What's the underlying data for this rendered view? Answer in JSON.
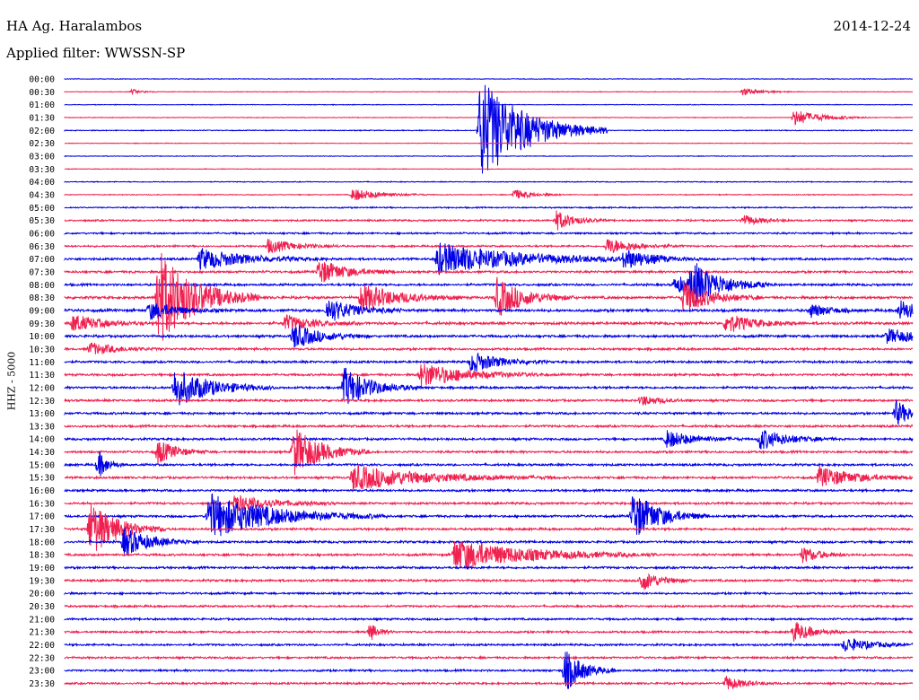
{
  "header": {
    "station": "HA Ag. Haralambos",
    "date": "2014-12-24",
    "filter": "Applied filter: WWSSN-SP"
  },
  "chart_data": {
    "type": "line",
    "ylabel": "HHZ - 5000",
    "row_labels": [
      "00:00",
      "00:30",
      "01:00",
      "01:30",
      "02:00",
      "02:30",
      "03:00",
      "03:30",
      "04:00",
      "04:30",
      "05:00",
      "05:30",
      "06:00",
      "06:30",
      "07:00",
      "07:30",
      "08:00",
      "08:30",
      "09:00",
      "09:30",
      "10:00",
      "10:30",
      "11:00",
      "11:30",
      "12:00",
      "12:30",
      "13:00",
      "13:30",
      "14:00",
      "14:30",
      "15:00",
      "15:30",
      "16:00",
      "16:30",
      "17:00",
      "17:30",
      "18:00",
      "18:30",
      "19:00",
      "19:30",
      "20:00",
      "20:30",
      "21:00",
      "21:30",
      "22:00",
      "22:30",
      "23:00",
      "23:30"
    ],
    "colors": {
      "even_rows": "#0000e6",
      "odd_rows": "#f0204f"
    },
    "noise_level": [
      0.3,
      0.3,
      0.3,
      0.3,
      0.4,
      0.3,
      0.3,
      0.3,
      0.4,
      0.4,
      0.6,
      0.8,
      0.8,
      0.8,
      1.0,
      1.0,
      1.0,
      1.2,
      1.2,
      1.2,
      1.1,
      1.0,
      1.0,
      1.0,
      1.0,
      1.0,
      1.0,
      1.0,
      1.0,
      1.0,
      1.0,
      1.0,
      1.0,
      1.0,
      1.0,
      1.0,
      1.0,
      1.0,
      1.0,
      1.0,
      0.9,
      0.9,
      0.9,
      0.9,
      0.9,
      0.9,
      0.9,
      0.9
    ],
    "events": [
      {
        "row": 1,
        "t": 0.08,
        "amp": 3,
        "dur": 0.01
      },
      {
        "row": 1,
        "t": 0.8,
        "amp": 4,
        "dur": 0.02
      },
      {
        "row": 3,
        "t": 0.86,
        "amp": 9,
        "dur": 0.03
      },
      {
        "row": 4,
        "t": 0.49,
        "amp": 60,
        "dur": 0.05
      },
      {
        "row": 9,
        "t": 0.34,
        "amp": 7,
        "dur": 0.03
      },
      {
        "row": 9,
        "t": 0.53,
        "amp": 6,
        "dur": 0.02
      },
      {
        "row": 11,
        "t": 0.58,
        "amp": 11,
        "dur": 0.02
      },
      {
        "row": 11,
        "t": 0.8,
        "amp": 6,
        "dur": 0.02
      },
      {
        "row": 13,
        "t": 0.24,
        "amp": 8,
        "dur": 0.03
      },
      {
        "row": 13,
        "t": 0.64,
        "amp": 9,
        "dur": 0.03
      },
      {
        "row": 14,
        "t": 0.16,
        "amp": 12,
        "dur": 0.05
      },
      {
        "row": 14,
        "t": 0.44,
        "amp": 18,
        "dur": 0.09
      },
      {
        "row": 14,
        "t": 0.66,
        "amp": 10,
        "dur": 0.03
      },
      {
        "row": 15,
        "t": 0.3,
        "amp": 14,
        "dur": 0.03
      },
      {
        "row": 16,
        "t": 0.72,
        "amp": 9,
        "dur": 0.04
      },
      {
        "row": 16,
        "t": 0.74,
        "amp": 22,
        "dur": 0.03
      },
      {
        "row": 17,
        "t": 0.11,
        "amp": 55,
        "dur": 0.04
      },
      {
        "row": 17,
        "t": 0.35,
        "amp": 16,
        "dur": 0.04
      },
      {
        "row": 17,
        "t": 0.51,
        "amp": 22,
        "dur": 0.03
      },
      {
        "row": 17,
        "t": 0.73,
        "amp": 18,
        "dur": 0.03
      },
      {
        "row": 18,
        "t": 0.1,
        "amp": 10,
        "dur": 0.03
      },
      {
        "row": 18,
        "t": 0.31,
        "amp": 14,
        "dur": 0.03
      },
      {
        "row": 18,
        "t": 0.88,
        "amp": 8,
        "dur": 0.02
      },
      {
        "row": 18,
        "t": 0.985,
        "amp": 12,
        "dur": 0.02
      },
      {
        "row": 19,
        "t": 0.01,
        "amp": 10,
        "dur": 0.03
      },
      {
        "row": 19,
        "t": 0.26,
        "amp": 9,
        "dur": 0.03
      },
      {
        "row": 19,
        "t": 0.78,
        "amp": 11,
        "dur": 0.03
      },
      {
        "row": 20,
        "t": 0.27,
        "amp": 14,
        "dur": 0.03
      },
      {
        "row": 20,
        "t": 0.97,
        "amp": 8,
        "dur": 0.04
      },
      {
        "row": 21,
        "t": 0.03,
        "amp": 7,
        "dur": 0.03
      },
      {
        "row": 22,
        "t": 0.48,
        "amp": 12,
        "dur": 0.03
      },
      {
        "row": 23,
        "t": 0.42,
        "amp": 14,
        "dur": 0.05
      },
      {
        "row": 24,
        "t": 0.13,
        "amp": 22,
        "dur": 0.04
      },
      {
        "row": 24,
        "t": 0.33,
        "amp": 22,
        "dur": 0.03
      },
      {
        "row": 25,
        "t": 0.68,
        "amp": 6,
        "dur": 0.02
      },
      {
        "row": 26,
        "t": 0.98,
        "amp": 14,
        "dur": 0.02
      },
      {
        "row": 28,
        "t": 0.71,
        "amp": 10,
        "dur": 0.03
      },
      {
        "row": 28,
        "t": 0.82,
        "amp": 12,
        "dur": 0.03
      },
      {
        "row": 29,
        "t": 0.11,
        "amp": 14,
        "dur": 0.02
      },
      {
        "row": 29,
        "t": 0.27,
        "amp": 28,
        "dur": 0.03
      },
      {
        "row": 30,
        "t": 0.04,
        "amp": 16,
        "dur": 0.01
      },
      {
        "row": 31,
        "t": 0.34,
        "amp": 14,
        "dur": 0.08
      },
      {
        "row": 31,
        "t": 0.89,
        "amp": 12,
        "dur": 0.04
      },
      {
        "row": 33,
        "t": 0.2,
        "amp": 10,
        "dur": 0.04
      },
      {
        "row": 34,
        "t": 0.17,
        "amp": 26,
        "dur": 0.07
      },
      {
        "row": 34,
        "t": 0.67,
        "amp": 28,
        "dur": 0.03
      },
      {
        "row": 35,
        "t": 0.03,
        "amp": 32,
        "dur": 0.03
      },
      {
        "row": 36,
        "t": 0.07,
        "amp": 16,
        "dur": 0.03
      },
      {
        "row": 37,
        "t": 0.46,
        "amp": 18,
        "dur": 0.08
      },
      {
        "row": 37,
        "t": 0.87,
        "amp": 9,
        "dur": 0.02
      },
      {
        "row": 39,
        "t": 0.68,
        "amp": 12,
        "dur": 0.02
      },
      {
        "row": 43,
        "t": 0.36,
        "amp": 10,
        "dur": 0.01
      },
      {
        "row": 43,
        "t": 0.86,
        "amp": 12,
        "dur": 0.02
      },
      {
        "row": 44,
        "t": 0.92,
        "amp": 8,
        "dur": 0.03
      },
      {
        "row": 46,
        "t": 0.59,
        "amp": 24,
        "dur": 0.02
      },
      {
        "row": 47,
        "t": 0.78,
        "amp": 8,
        "dur": 0.02
      }
    ]
  }
}
